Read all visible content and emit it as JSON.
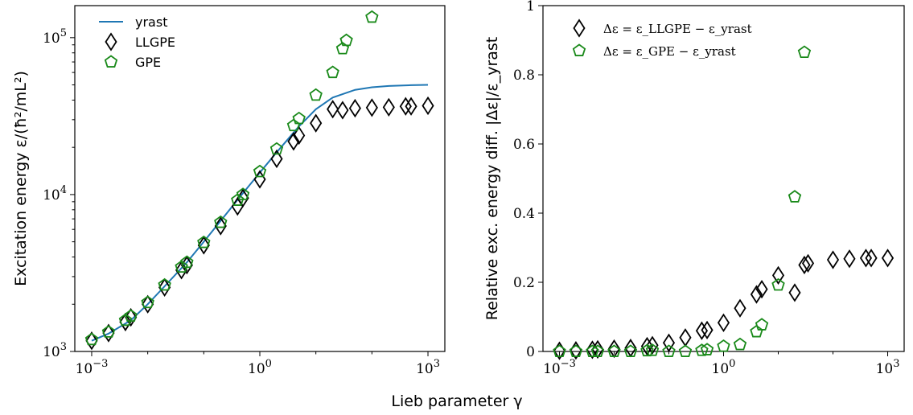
{
  "figure": {
    "shared_xlabel": "Lieb parameter γ"
  },
  "colors": {
    "yrast": "#1f77b4",
    "llgpe": "#000000",
    "gpe": "#1a8a1a"
  },
  "chart_data": [
    {
      "type": "scatter",
      "ylabel": "Excitation energy ε/(ħ²/mL²)",
      "xscale": "log",
      "yscale": "log",
      "xlim": [
        0.0005,
        2000
      ],
      "ylim": [
        1000,
        160000
      ],
      "x_ticks": [
        "10^-3",
        "10^0",
        "10^3"
      ],
      "y_ticks": [
        "10^3",
        "10^4",
        "10^5"
      ],
      "legend": {
        "placement": "top-left",
        "entries": [
          "yrast",
          "LLGPE",
          "GPE"
        ]
      },
      "series": [
        {
          "name": "yrast",
          "marker": "line",
          "x": [
            0.001,
            0.002,
            0.005,
            0.01,
            0.02,
            0.05,
            0.1,
            0.2,
            0.5,
            1,
            2,
            5,
            10,
            20,
            50,
            100,
            200,
            500,
            1000
          ],
          "y": [
            1170,
            1300,
            1580,
            2000,
            2600,
            3700,
            5000,
            6800,
            10200,
            13800,
            18600,
            27200,
            35000,
            41500,
            46500,
            48300,
            49200,
            49800,
            50000
          ]
        },
        {
          "name": "LLGPE",
          "marker": "diamond",
          "x": [
            0.001,
            0.002,
            0.004,
            0.005,
            0.01,
            0.02,
            0.04,
            0.05,
            0.1,
            0.2,
            0.4,
            0.5,
            1,
            2,
            4,
            5,
            10,
            20,
            30,
            50,
            100,
            200,
            400,
            500,
            1000
          ],
          "y": [
            1170,
            1310,
            1540,
            1650,
            2000,
            2560,
            3300,
            3550,
            4750,
            6300,
            8400,
            9500,
            12500,
            16900,
            21800,
            23800,
            28500,
            35000,
            34500,
            35500,
            35800,
            36000,
            36500,
            36500,
            36800
          ]
        },
        {
          "name": "GPE",
          "marker": "pentagon",
          "x": [
            0.001,
            0.002,
            0.004,
            0.005,
            0.01,
            0.02,
            0.04,
            0.05,
            0.1,
            0.2,
            0.4,
            0.5,
            1,
            2,
            4,
            5,
            10,
            20,
            30,
            35,
            100
          ],
          "y": [
            1190,
            1330,
            1580,
            1680,
            2050,
            2650,
            3450,
            3700,
            4950,
            6650,
            9200,
            10000,
            14000,
            19500,
            27500,
            30500,
            43000,
            60000,
            85000,
            96000,
            135000
          ]
        }
      ]
    },
    {
      "type": "scatter",
      "ylabel": "Relative exc. energy diff. |Δε|/ε_yrast",
      "xscale": "log",
      "yscale": "linear",
      "xlim": [
        0.0005,
        2000
      ],
      "ylim": [
        0,
        1
      ],
      "x_ticks": [
        "10^-3",
        "10^0",
        "10^3"
      ],
      "y_ticks": [
        "0",
        "0.2",
        "0.4",
        "0.6",
        "0.8",
        "1"
      ],
      "legend": {
        "placement": "top-left",
        "entries": [
          "Δε = ε_LLGPE − ε_yrast",
          "Δε = ε_GPE − ε_yrast"
        ]
      },
      "series": [
        {
          "name": "Δε = ε_LLGPE − ε_yrast",
          "marker": "diamond",
          "x": [
            0.001,
            0.002,
            0.004,
            0.005,
            0.01,
            0.02,
            0.04,
            0.05,
            0.1,
            0.2,
            0.4,
            0.5,
            1,
            2,
            4,
            5,
            10,
            20,
            30,
            35,
            100,
            200,
            400,
            500,
            1000
          ],
          "y": [
            0.002,
            0.003,
            0.005,
            0.006,
            0.008,
            0.01,
            0.015,
            0.018,
            0.025,
            0.04,
            0.06,
            0.062,
            0.083,
            0.125,
            0.165,
            0.18,
            0.22,
            0.17,
            0.25,
            0.255,
            0.265,
            0.268,
            0.27,
            0.27,
            0.27
          ]
        },
        {
          "name": "Δε = ε_GPE − ε_yrast",
          "marker": "pentagon",
          "x": [
            0.001,
            0.002,
            0.004,
            0.005,
            0.01,
            0.02,
            0.04,
            0.05,
            0.1,
            0.2,
            0.4,
            0.5,
            1,
            2,
            4,
            5,
            10,
            20,
            30
          ],
          "y": [
            0.0,
            0.0,
            0.0,
            0.0,
            0.0,
            0.0,
            0.002,
            0.003,
            0.0,
            0.0,
            0.003,
            0.005,
            0.015,
            0.02,
            0.057,
            0.077,
            0.192,
            0.447,
            0.865
          ]
        }
      ]
    }
  ]
}
